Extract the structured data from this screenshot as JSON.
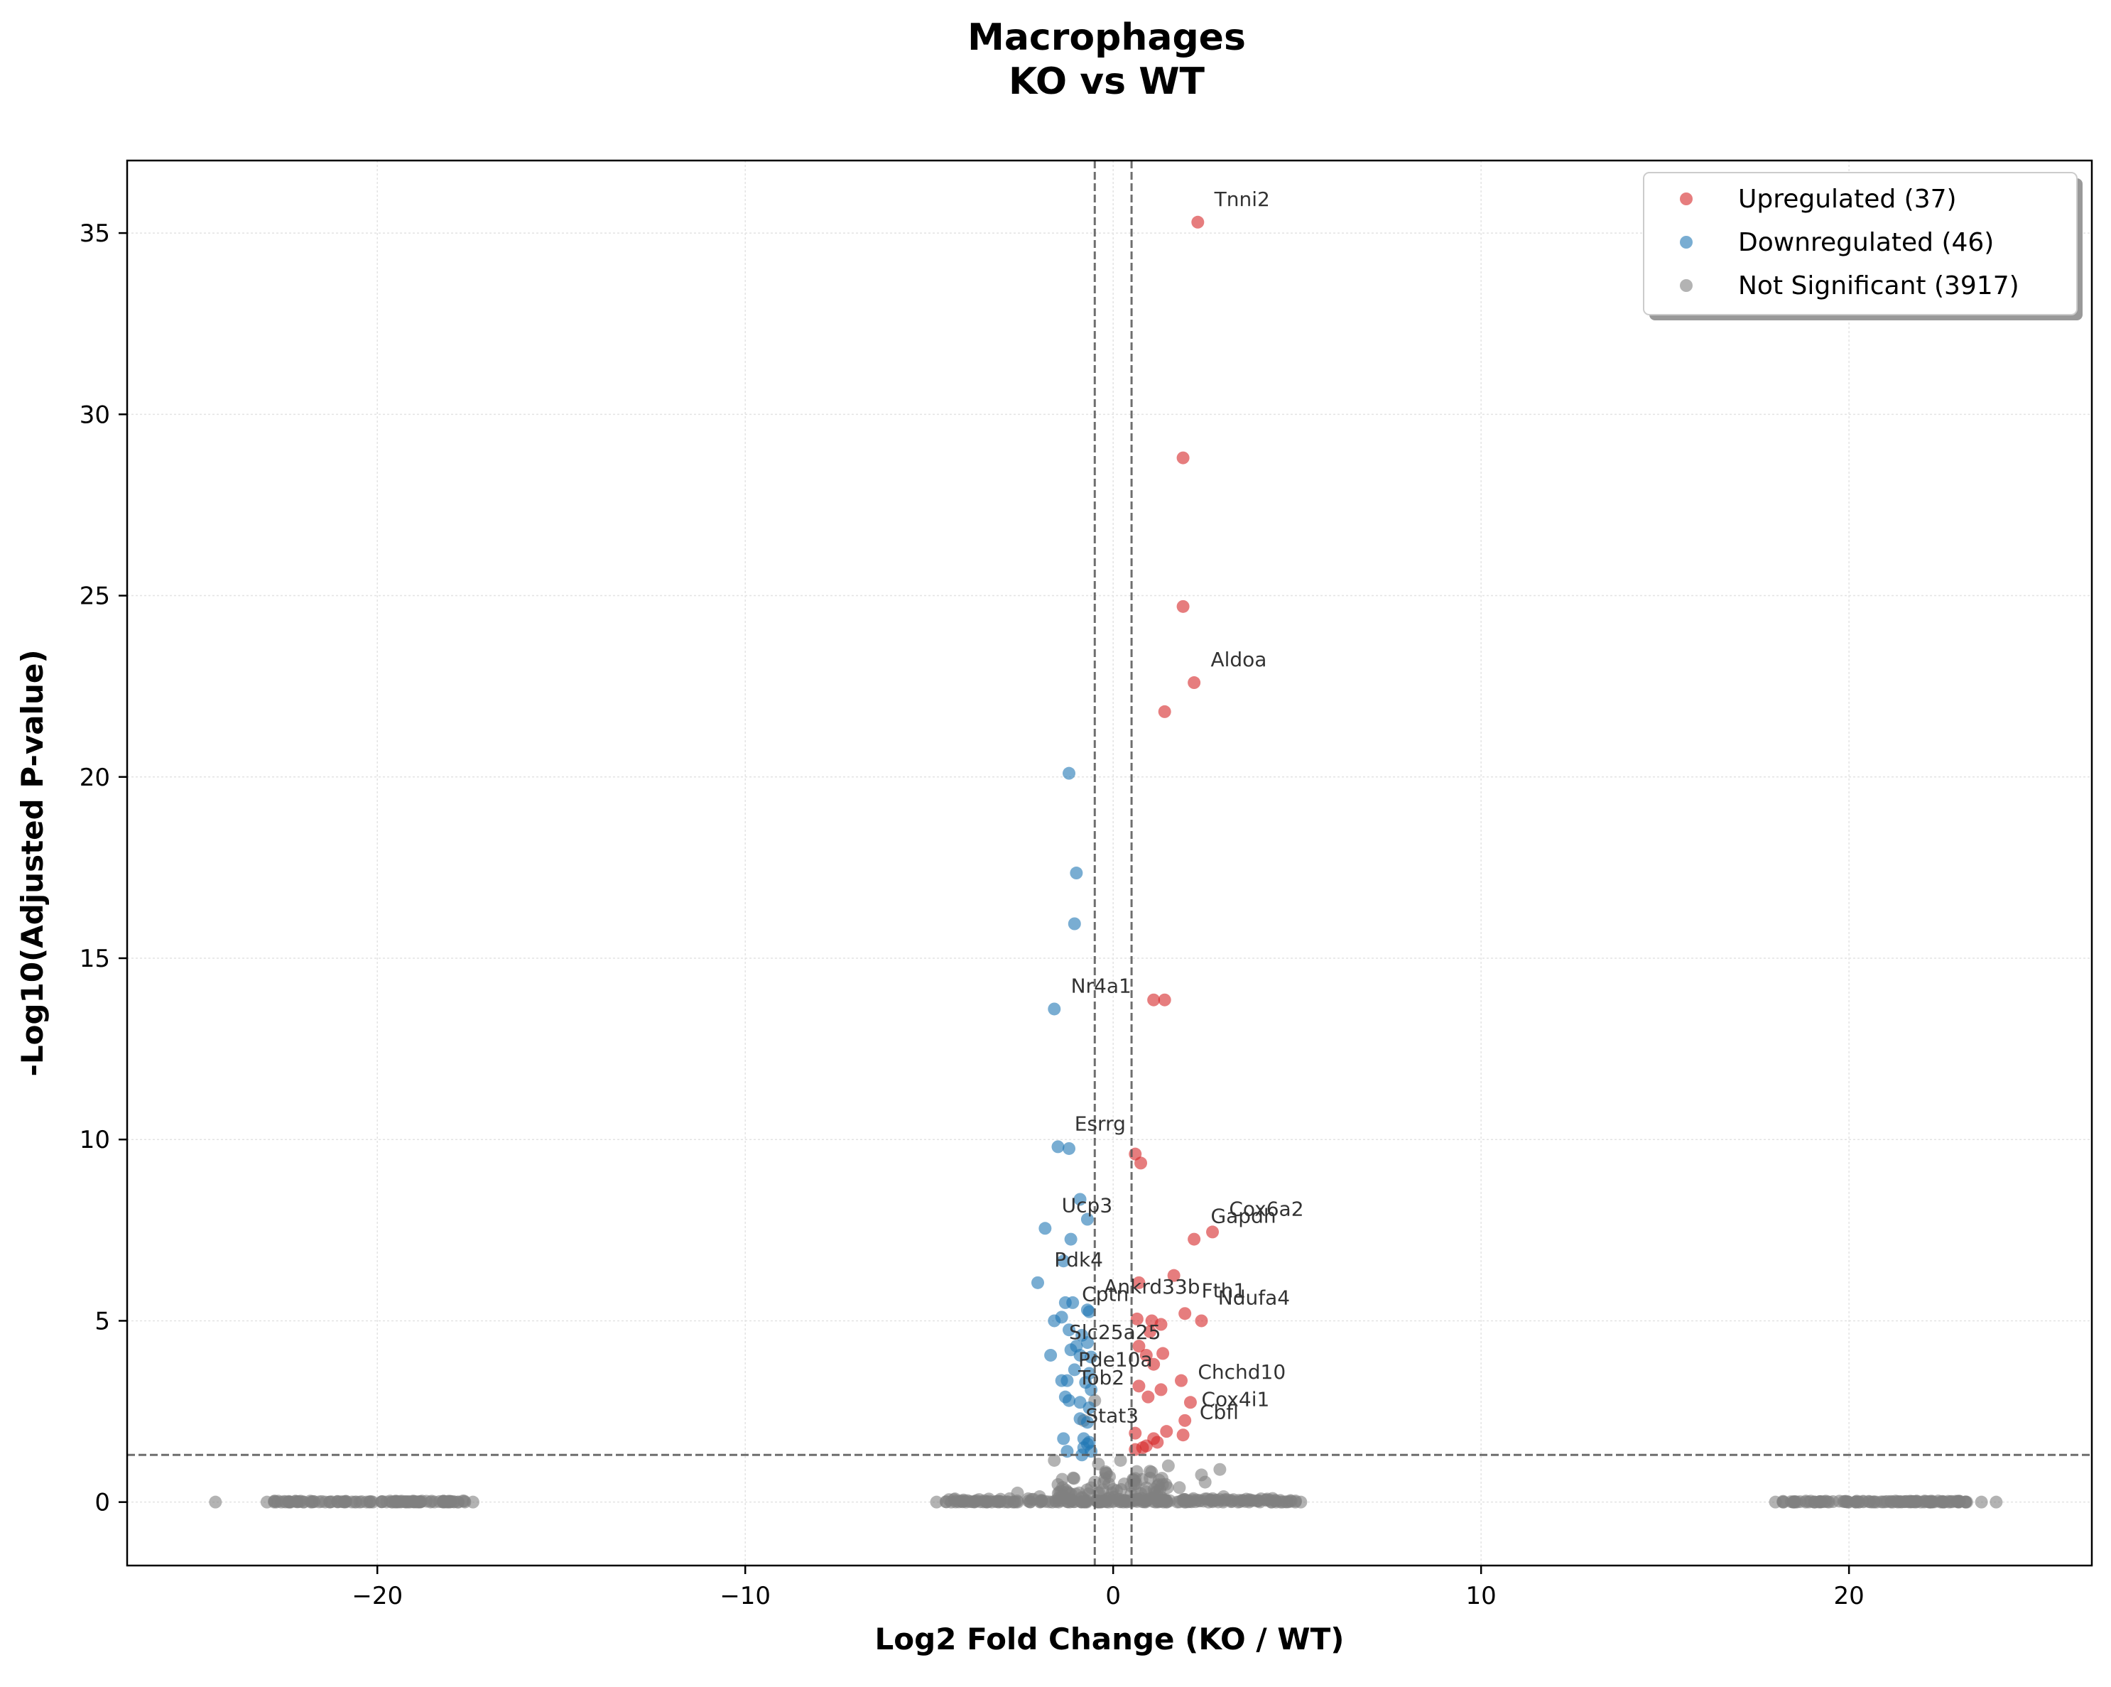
{
  "chart_data": {
    "type": "scatter",
    "title": "Macrophages\nKO vs WT",
    "title_lines": [
      "Macrophages",
      "KO vs WT"
    ],
    "xlabel": "Log2 Fold Change (KO / WT)",
    "ylabel": "-Log10(Adjusted P-value)",
    "xlim": [
      -26.8,
      26.6
    ],
    "ylim": [
      -1.75,
      37.0
    ],
    "xticks": [
      -20,
      -10,
      0,
      10,
      20
    ],
    "xtick_labels": [
      "−20",
      "−10",
      "0",
      "10",
      "20"
    ],
    "yticks": [
      0,
      5,
      10,
      15,
      20,
      25,
      30,
      35
    ],
    "ytick_labels": [
      "0",
      "5",
      "10",
      "15",
      "20",
      "25",
      "30",
      "35"
    ],
    "grid": true,
    "legend_position": "top-right",
    "thresholds": {
      "log2fc": [
        -0.5,
        0.5
      ],
      "neg_log10_padj": 1.3
    },
    "colors": {
      "up": "#d62728",
      "down": "#1f77b4",
      "ns": "#808080"
    },
    "series": [
      {
        "name": "Upregulated (37)",
        "key": "up",
        "points": [
          [
            2.3,
            35.3
          ],
          [
            1.9,
            28.8
          ],
          [
            1.9,
            24.7
          ],
          [
            2.2,
            22.6
          ],
          [
            1.4,
            21.8
          ],
          [
            1.1,
            13.85
          ],
          [
            1.4,
            13.85
          ],
          [
            0.6,
            9.6
          ],
          [
            0.75,
            9.35
          ],
          [
            2.7,
            7.45
          ],
          [
            2.2,
            7.25
          ],
          [
            1.65,
            6.25
          ],
          [
            0.7,
            6.05
          ],
          [
            1.95,
            5.2
          ],
          [
            2.4,
            5.0
          ],
          [
            0.65,
            5.05
          ],
          [
            1.0,
            4.7
          ],
          [
            1.3,
            4.9
          ],
          [
            1.05,
            5.0
          ],
          [
            1.35,
            4.1
          ],
          [
            0.9,
            4.05
          ],
          [
            1.1,
            3.8
          ],
          [
            0.7,
            4.3
          ],
          [
            1.85,
            3.35
          ],
          [
            0.7,
            3.2
          ],
          [
            1.3,
            3.1
          ],
          [
            2.1,
            2.75
          ],
          [
            0.95,
            2.9
          ],
          [
            1.95,
            2.25
          ],
          [
            1.9,
            1.85
          ],
          [
            1.45,
            1.95
          ],
          [
            1.1,
            1.75
          ],
          [
            1.2,
            1.65
          ],
          [
            0.6,
            1.9
          ],
          [
            0.9,
            1.55
          ],
          [
            0.6,
            1.45
          ],
          [
            0.8,
            1.5
          ]
        ]
      },
      {
        "name": "Downregulated (46)",
        "key": "down",
        "points": [
          [
            -1.2,
            20.1
          ],
          [
            -1.0,
            17.35
          ],
          [
            -1.05,
            15.95
          ],
          [
            -1.6,
            13.6
          ],
          [
            -1.5,
            9.8
          ],
          [
            -1.2,
            9.75
          ],
          [
            -0.9,
            8.35
          ],
          [
            -0.7,
            7.8
          ],
          [
            -1.85,
            7.55
          ],
          [
            -1.15,
            7.25
          ],
          [
            -1.35,
            6.65
          ],
          [
            -2.05,
            6.05
          ],
          [
            -1.3,
            5.5
          ],
          [
            -1.1,
            5.5
          ],
          [
            -0.7,
            5.3
          ],
          [
            -0.65,
            5.25
          ],
          [
            -1.4,
            5.1
          ],
          [
            -1.6,
            5.0
          ],
          [
            -1.2,
            4.75
          ],
          [
            -0.85,
            4.6
          ],
          [
            -1.0,
            4.3
          ],
          [
            -0.7,
            4.4
          ],
          [
            -1.7,
            4.05
          ],
          [
            -1.15,
            4.2
          ],
          [
            -0.9,
            4.05
          ],
          [
            -0.6,
            4.0
          ],
          [
            -1.05,
            3.65
          ],
          [
            -0.65,
            3.55
          ],
          [
            -1.4,
            3.35
          ],
          [
            -1.25,
            3.35
          ],
          [
            -0.75,
            3.3
          ],
          [
            -0.6,
            3.1
          ],
          [
            -1.3,
            2.9
          ],
          [
            -1.2,
            2.8
          ],
          [
            -0.9,
            2.75
          ],
          [
            -0.65,
            2.6
          ],
          [
            -0.9,
            2.3
          ],
          [
            -0.7,
            2.2
          ],
          [
            -1.35,
            1.75
          ],
          [
            -0.8,
            1.75
          ],
          [
            -0.65,
            1.65
          ],
          [
            -1.25,
            1.4
          ],
          [
            -0.8,
            1.5
          ],
          [
            -0.6,
            1.4
          ],
          [
            -0.7,
            1.6
          ],
          [
            -0.85,
            1.3
          ]
        ]
      },
      {
        "name": "Not Significant (3917)",
        "key": "ns",
        "points": [
          [
            -24.4,
            0
          ],
          [
            -17.4,
            0
          ],
          [
            -23.0,
            0
          ],
          [
            -17.8,
            0
          ],
          [
            -22.8,
            0
          ],
          [
            -4.8,
            0
          ],
          [
            -4.4,
            0
          ],
          [
            -4.0,
            0
          ],
          [
            5.1,
            0
          ],
          [
            4.6,
            0
          ],
          [
            4.3,
            0
          ],
          [
            18.0,
            0
          ],
          [
            24.0,
            0
          ],
          [
            23.6,
            0
          ],
          [
            18.5,
            0
          ],
          [
            23.2,
            0
          ],
          [
            -1.6,
            1.15
          ],
          [
            0.2,
            1.15
          ],
          [
            -0.4,
            1.05
          ],
          [
            1.5,
            1.0
          ],
          [
            2.4,
            0.75
          ],
          [
            2.9,
            0.9
          ],
          [
            1.0,
            0.85
          ],
          [
            -0.2,
            0.8
          ],
          [
            0.6,
            0.65
          ],
          [
            2.5,
            0.55
          ],
          [
            -0.8,
            2.25
          ],
          [
            -0.5,
            2.8
          ],
          [
            1.8,
            0.4
          ],
          [
            0.3,
            0.5
          ],
          [
            -0.5,
            0.55
          ],
          [
            -2.0,
            0.15
          ],
          [
            -1.2,
            0.25
          ],
          [
            -2.6,
            0.25
          ],
          [
            1.2,
            0.3
          ],
          [
            3.0,
            0.15
          ],
          [
            0.0,
            0.35
          ],
          [
            -0.1,
            0.7
          ]
        ],
        "clusters": [
          {
            "x_range": [
              -22.8,
              -17.6
            ],
            "y_range": [
              0,
              0.03
            ],
            "count": 110
          },
          {
            "x_range": [
              18.2,
              23.2
            ],
            "y_range": [
              0,
              0.03
            ],
            "count": 110
          },
          {
            "x_range": [
              -4.6,
              5.0
            ],
            "y_range": [
              0,
              0.1
            ],
            "count": 200
          },
          {
            "x_range": [
              -1.5,
              1.6
            ],
            "y_range": [
              0,
              0.9
            ],
            "count": 90
          }
        ]
      }
    ],
    "annotations": [
      {
        "text": "Tnni2",
        "x": 2.3,
        "y": 35.3,
        "dx": 0.45,
        "dy": 0.45
      },
      {
        "text": "Aldoa",
        "x": 2.2,
        "y": 22.6,
        "dx": 0.45,
        "dy": 0.45
      },
      {
        "text": "Nr4a1",
        "x": -1.6,
        "y": 13.6,
        "dx": 0.45,
        "dy": 0.45
      },
      {
        "text": "Esrrg",
        "x": -1.5,
        "y": 9.8,
        "dx": 0.45,
        "dy": 0.45
      },
      {
        "text": "Cox6a2",
        "x": 2.7,
        "y": 7.45,
        "dx": 0.45,
        "dy": 0.45
      },
      {
        "text": "Gapdh",
        "x": 2.2,
        "y": 7.25,
        "dx": 0.45,
        "dy": 0.45
      },
      {
        "text": "Ucp3",
        "x": -1.85,
        "y": 7.55,
        "dx": 0.45,
        "dy": 0.45
      },
      {
        "text": "Pdk4",
        "x": -2.05,
        "y": 6.05,
        "dx": 0.45,
        "dy": 0.45
      },
      {
        "text": "Fth1",
        "x": 1.95,
        "y": 5.2,
        "dx": 0.45,
        "dy": 0.45
      },
      {
        "text": "Ndufa4",
        "x": 2.4,
        "y": 5.0,
        "dx": 0.45,
        "dy": 0.45
      },
      {
        "text": "Ankrd33b",
        "x": -0.7,
        "y": 5.3,
        "dx": 0.45,
        "dy": 0.45
      },
      {
        "text": "Cptn",
        "x": -1.3,
        "y": 5.1,
        "dx": 0.45,
        "dy": 0.45
      },
      {
        "text": "Slc25a25",
        "x": -1.65,
        "y": 4.05,
        "dx": 0.45,
        "dy": 0.45
      },
      {
        "text": "Pde10a",
        "x": -1.4,
        "y": 3.3,
        "dx": 0.45,
        "dy": 0.45
      },
      {
        "text": "Tob2",
        "x": -1.4,
        "y": 2.8,
        "dx": 0.45,
        "dy": 0.45
      },
      {
        "text": "Chchd10",
        "x": 1.85,
        "y": 2.95,
        "dx": 0.45,
        "dy": 0.45
      },
      {
        "text": "Cox4i1",
        "x": 1.95,
        "y": 2.2,
        "dx": 0.45,
        "dy": 0.45
      },
      {
        "text": "Cbfl",
        "x": 1.9,
        "y": 1.85,
        "dx": 0.45,
        "dy": 0.45
      },
      {
        "text": "Stat3",
        "x": -1.2,
        "y": 1.75,
        "dx": 0.45,
        "dy": 0.45
      }
    ]
  }
}
